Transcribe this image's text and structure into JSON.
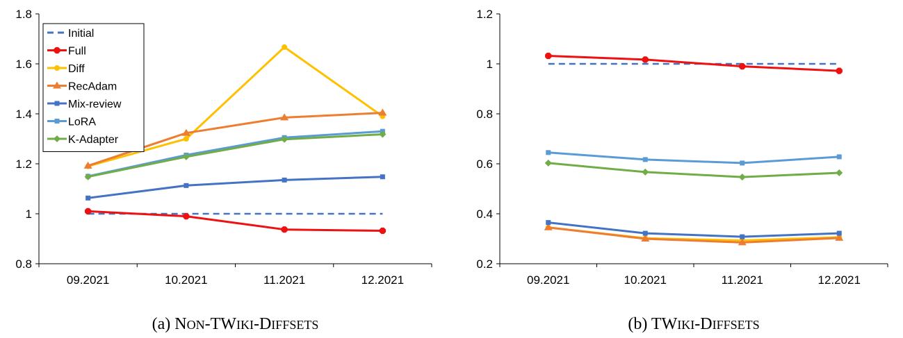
{
  "chart_data": [
    {
      "type": "line",
      "caption_prefix": "(a)",
      "caption_main": "Non-TWiki-Diffsets",
      "categories": [
        "09.2021",
        "10.2021",
        "11.2021",
        "12.2021"
      ],
      "ylim": [
        0.8,
        1.8
      ],
      "yticks": [
        0.8,
        1,
        1.2,
        1.4,
        1.6,
        1.8
      ],
      "ytick_labels": [
        "0.8",
        "1",
        "1.2",
        "1.4",
        "1.6",
        "1.8"
      ],
      "legend": "top-left",
      "grid": false,
      "series": [
        {
          "name": "Initial",
          "color": "#4472c4",
          "marker": "none",
          "dashed": true,
          "values": [
            1.0,
            1.0,
            1.0,
            1.0
          ]
        },
        {
          "name": "Full",
          "color": "#ee1111",
          "marker": "hexagon",
          "dashed": false,
          "values": [
            1.01,
            0.99,
            0.937,
            0.932
          ]
        },
        {
          "name": "Diff",
          "color": "#ffc000",
          "marker": "circle",
          "dashed": false,
          "values": [
            1.19,
            1.3,
            1.667,
            1.39
          ]
        },
        {
          "name": "RecAdam",
          "color": "#ed7d31",
          "marker": "triangle",
          "dashed": false,
          "values": [
            1.192,
            1.323,
            1.385,
            1.404
          ]
        },
        {
          "name": "Mix-review",
          "color": "#4472c4",
          "marker": "square",
          "dashed": false,
          "values": [
            1.063,
            1.113,
            1.135,
            1.148
          ]
        },
        {
          "name": "LoRA",
          "color": "#5b9bd5",
          "marker": "square",
          "dashed": false,
          "values": [
            1.15,
            1.235,
            1.305,
            1.33
          ]
        },
        {
          "name": "K-Adapter",
          "color": "#70ad47",
          "marker": "diamond",
          "dashed": false,
          "values": [
            1.148,
            1.228,
            1.298,
            1.318
          ]
        }
      ]
    },
    {
      "type": "line",
      "caption_prefix": "(b)",
      "caption_main": "TWiki-Diffsets",
      "categories": [
        "09.2021",
        "10.2021",
        "11.2021",
        "12.2021"
      ],
      "ylim": [
        0.2,
        1.2
      ],
      "yticks": [
        0.2,
        0.4,
        0.6,
        0.8,
        1,
        1.2
      ],
      "ytick_labels": [
        "0.2",
        "0.4",
        "0.6",
        "0.8",
        "1",
        "1.2"
      ],
      "grid": false,
      "series": [
        {
          "color": "#4472c4",
          "marker": "none",
          "dashed": true,
          "values": [
            1.0,
            1.0,
            1.0,
            1.0
          ]
        },
        {
          "color": "#ee1111",
          "marker": "hexagon",
          "dashed": false,
          "values": [
            1.032,
            1.017,
            0.99,
            0.972
          ]
        },
        {
          "color": "#ffc000",
          "marker": "circle",
          "dashed": false,
          "values": [
            0.345,
            0.302,
            0.293,
            0.306
          ]
        },
        {
          "color": "#ed7d31",
          "marker": "triangle",
          "dashed": false,
          "values": [
            0.345,
            0.3,
            0.285,
            0.303
          ]
        },
        {
          "color": "#4472c4",
          "marker": "square",
          "dashed": false,
          "values": [
            0.365,
            0.322,
            0.308,
            0.322
          ]
        },
        {
          "color": "#5b9bd5",
          "marker": "square",
          "dashed": false,
          "values": [
            0.645,
            0.617,
            0.603,
            0.628
          ]
        },
        {
          "color": "#70ad47",
          "marker": "diamond",
          "dashed": false,
          "values": [
            0.603,
            0.567,
            0.547,
            0.564
          ]
        }
      ]
    }
  ]
}
